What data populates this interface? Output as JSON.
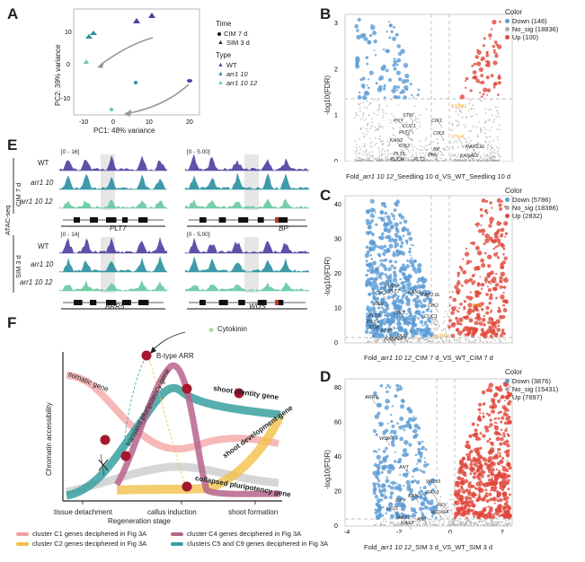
{
  "panels": {
    "A": {
      "letter": "A",
      "xlabel": "PC1: 48% variance",
      "ylabel": "PC2: 39% variance",
      "xticks": [
        "-10",
        "0",
        "10",
        "20"
      ],
      "yticks": [
        "10",
        "0",
        "-10"
      ],
      "legend": {
        "time_title": "Time",
        "time_items": [
          "CIM 7 d",
          "SIM 3 d"
        ],
        "type_title": "Type",
        "type_items": [
          "WT",
          "arr1 10",
          "arr1 10 12"
        ],
        "type_colors": [
          "#4a3fa0",
          "#2a8fa0",
          "#66c9a0"
        ]
      }
    },
    "B": {
      "letter": "B",
      "ylabel": "-log10(FDR)",
      "xlabel_prefix": "Fold_",
      "xlabel_genotype": "arr1 10 12",
      "xlabel_suffix": "_Seedling 10 d_VS_WT_Seedling 10 d",
      "xticks": [
        "-5.0",
        "-2.5",
        "0.0",
        "2.5",
        "5.0"
      ],
      "yticks": [
        "0",
        "1",
        "2",
        "3"
      ],
      "legend_title": "Color",
      "legend": [
        "Down (146)",
        "No_sig (18836)",
        "Up (100)"
      ],
      "genes": [
        "STM",
        "PXY",
        "CUC1",
        "PLT7",
        "KAN2",
        "CIK2",
        "PLT5",
        "PUCH",
        "PLT3",
        "CIK1",
        "CIK3",
        "BP",
        "PHV",
        "RAP2.6L",
        "KANADI",
        "EXPA1",
        "XTH4"
      ]
    },
    "C": {
      "letter": "C",
      "ylabel": "-log10(FDR)",
      "xlabel_prefix": "Fold_",
      "xlabel_genotype": "arr1 10 12",
      "xlabel_suffix": "_CIM 7 d_VS_WT_CIM 7 d",
      "xticks": [
        "-5.0",
        "-2.5",
        "0.0",
        "2.5",
        "5.0"
      ],
      "yticks": [
        "0",
        "10",
        "20",
        "30",
        "40"
      ],
      "legend_title": "Color",
      "legend": [
        "Down (5786)",
        "No_sig (18386)",
        "Up (2832)"
      ],
      "genes": [
        "PUCH",
        "CIK2",
        "PLT7",
        "KAN2",
        "RAP2.6L",
        "REV",
        "CIK1",
        "PLT3",
        "CIK3",
        "PXY",
        "STM",
        "PLT5",
        "CUC1",
        "PHV",
        "KANADI",
        "XTH4",
        "EXPA1"
      ]
    },
    "D": {
      "letter": "D",
      "ylabel": "-log10(FDR)",
      "xlabel_prefix": "Fold_",
      "xlabel_genotype": "arr1 10 12",
      "xlabel_suffix": "_SIM 3 d_VS_WT_SIM 3 d",
      "xticks": [
        "-4",
        "-2",
        "0",
        "2"
      ],
      "yticks": [
        "0",
        "20",
        "40",
        "60",
        "80"
      ],
      "legend_title": "Color",
      "legend": [
        "Down (3876)",
        "No_sig (15431)",
        "Up (7697)"
      ],
      "genes": [
        "ARR5",
        "WOX4",
        "ANT",
        "WOX5",
        "RAX3",
        "KAN1",
        "PXY",
        "REV",
        "WUS",
        "RAX1",
        "WOX14",
        "RAX2",
        "ANT"
      ]
    },
    "E": {
      "letter": "E",
      "assay": "ATAC-seq",
      "conditions": [
        "CIM 7 d",
        "SIM 3 d"
      ],
      "tracks": [
        "WT",
        "arr1 10",
        "arr1 10 12"
      ],
      "ranges": [
        "[0 - 16]",
        "[0 - 5.00]",
        "[0 - 14]",
        "[0 - 5.00]"
      ],
      "loci": [
        "PLT7",
        "BP",
        "ARR5",
        "WUS"
      ]
    },
    "F": {
      "letter": "F",
      "cytokinin": "Cytokinin",
      "btype": "B-type ARR",
      "ylabel": "Chromatin accessibility",
      "xlabel": "Regeneration stage",
      "stages": [
        "tissue detachment",
        "callus induction",
        "shoot formation"
      ],
      "curves": [
        "somatic gene",
        "transient pluripotency gene",
        "shoot identity gene",
        "shoot development gene",
        "collapsed pluripotency gene"
      ],
      "legend": [
        "cluster C1 genes deciphered in Fig 3A",
        "cluster C2 genes deciphered in Fig 3A",
        "cluster C4 genes deciphered in Fig 3A",
        "clusters C5 and C9 genes deciphered in Fig 3A"
      ],
      "legend_colors": [
        "#f4a0a0",
        "#f2c04a",
        "#b7648c",
        "#3aa0a0"
      ]
    }
  },
  "colors": {
    "down": "#5b9bd5",
    "nosig": "#aaaaaa",
    "up": "#e0463a",
    "highlight": "#f0a020"
  }
}
